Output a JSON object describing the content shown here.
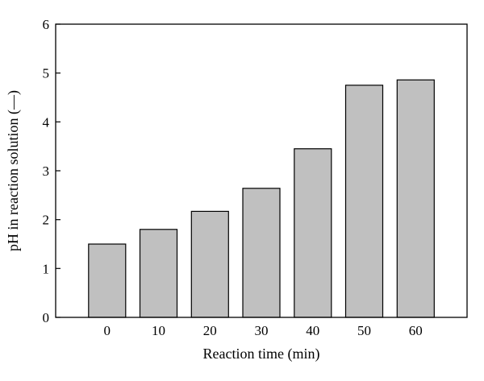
{
  "chart_data": {
    "type": "bar",
    "categories": [
      "0",
      "10",
      "20",
      "30",
      "40",
      "50",
      "60"
    ],
    "values": [
      1.5,
      1.8,
      2.17,
      2.64,
      3.45,
      4.75,
      4.86
    ],
    "title": "",
    "xlabel": "Reaction time (min)",
    "ylabel": "pH in reaction solution (—)",
    "ylim": [
      0,
      6
    ],
    "yticks": [
      "0",
      "1",
      "2",
      "3",
      "4",
      "5",
      "6"
    ],
    "grid": false,
    "legend": "none",
    "bar_color": "#c0c0c0",
    "bar_edge_color": "#000000"
  }
}
